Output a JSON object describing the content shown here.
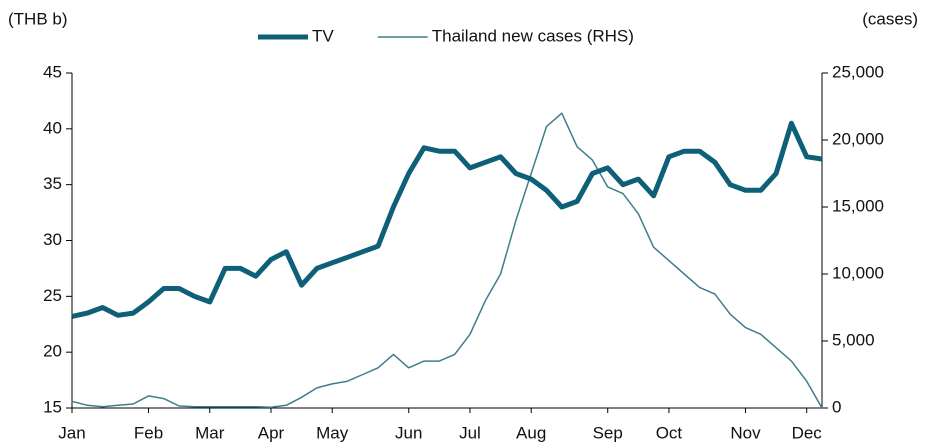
{
  "chart_data": {
    "type": "line",
    "y_unit": "(THB b)",
    "y2_unit": "(cases)",
    "categories": [
      "Jan",
      null,
      null,
      null,
      null,
      "Feb",
      null,
      null,
      null,
      "Mar",
      null,
      null,
      null,
      "Apr",
      null,
      null,
      null,
      "May",
      null,
      null,
      null,
      null,
      "Jun",
      null,
      null,
      null,
      "Jul",
      null,
      null,
      null,
      "Aug",
      null,
      null,
      null,
      null,
      "Sep",
      null,
      null,
      null,
      "Oct",
      null,
      null,
      null,
      null,
      "Nov",
      null,
      null,
      null,
      "Dec",
      null
    ],
    "series": [
      {
        "name": "TV",
        "color": "#0e6078",
        "axis": "y",
        "width": 5,
        "values": [
          23.2,
          23.5,
          24,
          23.3,
          23.5,
          24.5,
          25.7,
          25.7,
          25,
          24.5,
          27.5,
          27.5,
          26.8,
          28.3,
          29,
          26,
          27.5,
          28,
          28.5,
          29,
          29.5,
          33,
          36,
          38.3,
          38,
          38,
          36.5,
          37,
          37.5,
          36,
          35.5,
          34.5,
          33,
          33.5,
          36,
          36.5,
          35,
          35.5,
          34,
          37.5,
          38,
          38,
          37,
          35,
          34.5,
          34.5,
          36,
          40.5,
          37.5,
          37.3
        ]
      },
      {
        "name": "Thailand new cases (RHS)",
        "color": "#3f7d8c",
        "axis": "y2",
        "width": 1.5,
        "values": [
          500,
          200,
          100,
          200,
          300,
          900,
          700,
          150,
          100,
          100,
          100,
          100,
          100,
          50,
          200,
          800,
          1500,
          1800,
          2000,
          2500,
          3000,
          4000,
          3000,
          3500,
          3500,
          4000,
          5500,
          8000,
          10000,
          14000,
          17500,
          21000,
          22000,
          19500,
          18500,
          16500,
          16000,
          14500,
          12000,
          11000,
          10000,
          9000,
          8500,
          7000,
          6000,
          5500,
          4500,
          3500,
          2000,
          0
        ]
      }
    ],
    "ylim": [
      15,
      45
    ],
    "yticks": [
      15,
      20,
      25,
      30,
      35,
      40,
      45
    ],
    "y2lim": [
      0,
      25000
    ],
    "y2ticks": [
      0,
      {
        "value": 5000,
        "label": "5,000"
      },
      {
        "value": 10000,
        "label": "10,000"
      },
      {
        "value": 15000,
        "label": "15,000"
      },
      {
        "value": 20000,
        "label": "20,000"
      },
      {
        "value": 25000,
        "label": "25,000"
      }
    ]
  }
}
